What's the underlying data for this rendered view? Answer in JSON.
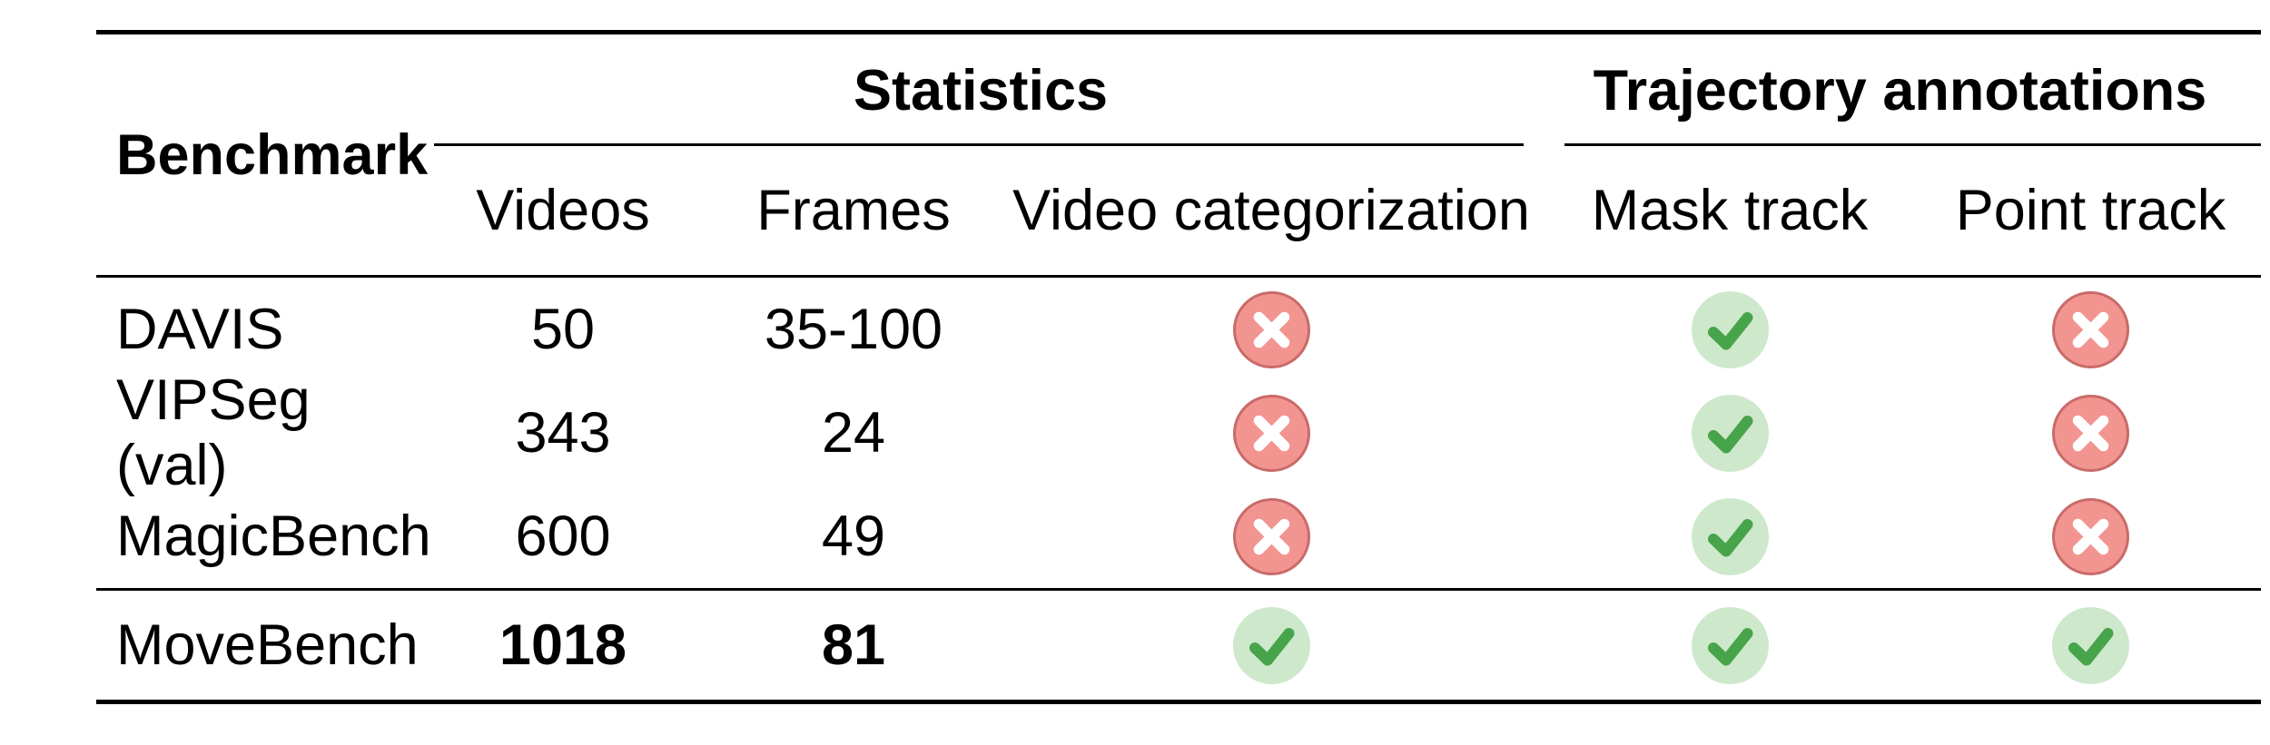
{
  "table": {
    "corner_header": "Benchmark",
    "groups": [
      {
        "label": "Statistics",
        "columns": [
          "Videos",
          "Frames",
          "Video categorization"
        ]
      },
      {
        "label": "Trajectory annotations",
        "columns": [
          "Mask track",
          "Point track"
        ]
      }
    ],
    "rows": [
      {
        "benchmark": "DAVIS",
        "videos": "50",
        "frames": "35-100",
        "video_categorization": "cross",
        "mask_track": "check",
        "point_track": "cross",
        "emphasis": false
      },
      {
        "benchmark": "VIPSeg (val)",
        "videos": "343",
        "frames": "24",
        "video_categorization": "cross",
        "mask_track": "check",
        "point_track": "cross",
        "emphasis": false
      },
      {
        "benchmark": "MagicBench",
        "videos": "600",
        "frames": "49",
        "video_categorization": "cross",
        "mask_track": "check",
        "point_track": "cross",
        "emphasis": false
      },
      {
        "benchmark": "MoveBench",
        "videos": "1018",
        "frames": "81",
        "video_categorization": "check",
        "mask_track": "check",
        "point_track": "check",
        "emphasis": true
      }
    ],
    "icons": {
      "check": "check-icon",
      "cross": "cross-icon"
    },
    "colors": {
      "check_fill": "#cee8cc",
      "check_mark": "#47a44b",
      "cross_fill": "#f29490",
      "cross_border": "#c96b69",
      "cross_mark": "#ffffff",
      "rule": "#000000",
      "text": "#000000"
    }
  }
}
